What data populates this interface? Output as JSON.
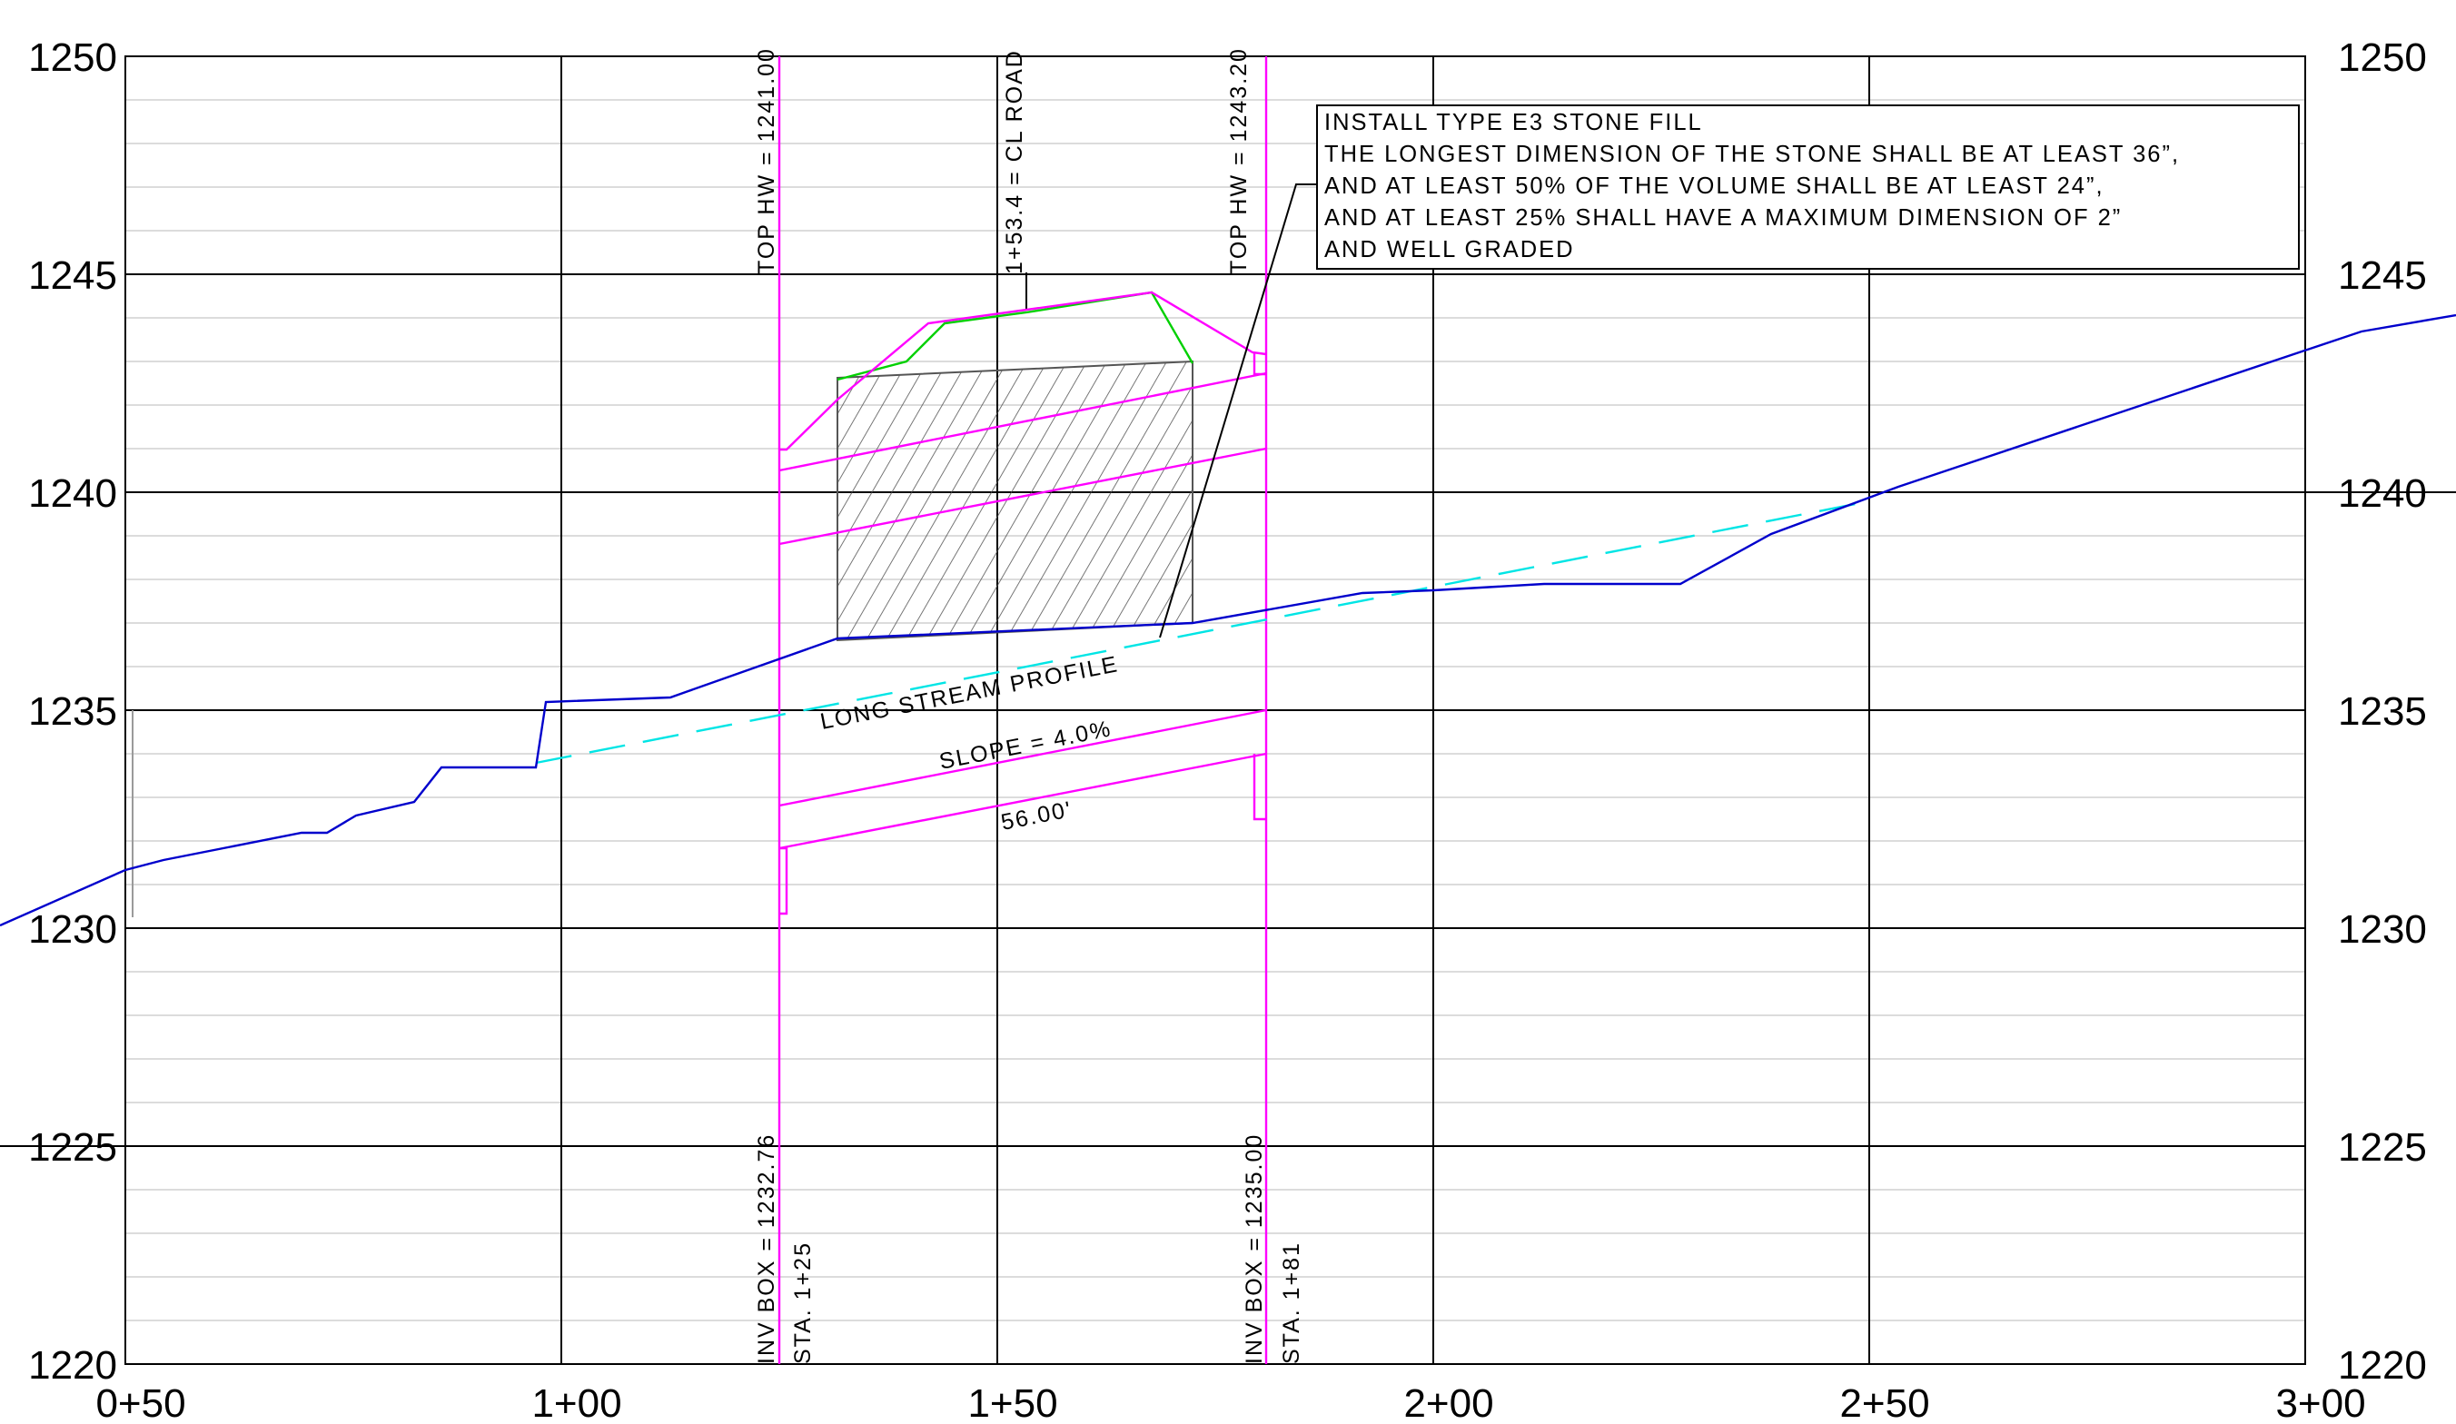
{
  "axes": {
    "elevation_labels": [
      "1250",
      "1245",
      "1240",
      "1235",
      "1230",
      "1225",
      "1220"
    ],
    "station_labels": [
      "0+50",
      "1+00",
      "1+50",
      "2+00",
      "2+50",
      "3+00"
    ]
  },
  "callouts": {
    "top_hw_left": "TOP HW = 1241.00",
    "cl_road": "1+53.4 = CL ROAD",
    "top_hw_right": "TOP HW = 1243.20",
    "inv_box_left": "INV BOX = 1232.76",
    "sta_left": "STA. 1+25",
    "inv_box_right": "INV BOX = 1235.00",
    "sta_right": "STA. 1+81",
    "stream_profile": "LONG STREAM PROFILE",
    "slope": "SLOPE = 4.0%",
    "length": "56.00'"
  },
  "note": {
    "lines": [
      "INSTALL TYPE E3 STONE FILL",
      "THE LONGEST DIMENSION OF THE STONE SHALL BE AT LEAST 36”,",
      "AND AT LEAST 50% OF THE VOLUME SHALL BE AT LEAST 24”,",
      "AND AT LEAST 25% SHALL HAVE A MAXIMUM DIMENSION OF 2”",
      "AND WELL GRADED"
    ]
  },
  "colors": {
    "grid_major": "#000000",
    "grid_minor": "#c8c8c8",
    "ground_profile": "#0000cc",
    "stream_profile": "#00e5e5",
    "culvert": "#ff00ff",
    "embankment_top": "#00d000",
    "hatch": "#555555"
  }
}
